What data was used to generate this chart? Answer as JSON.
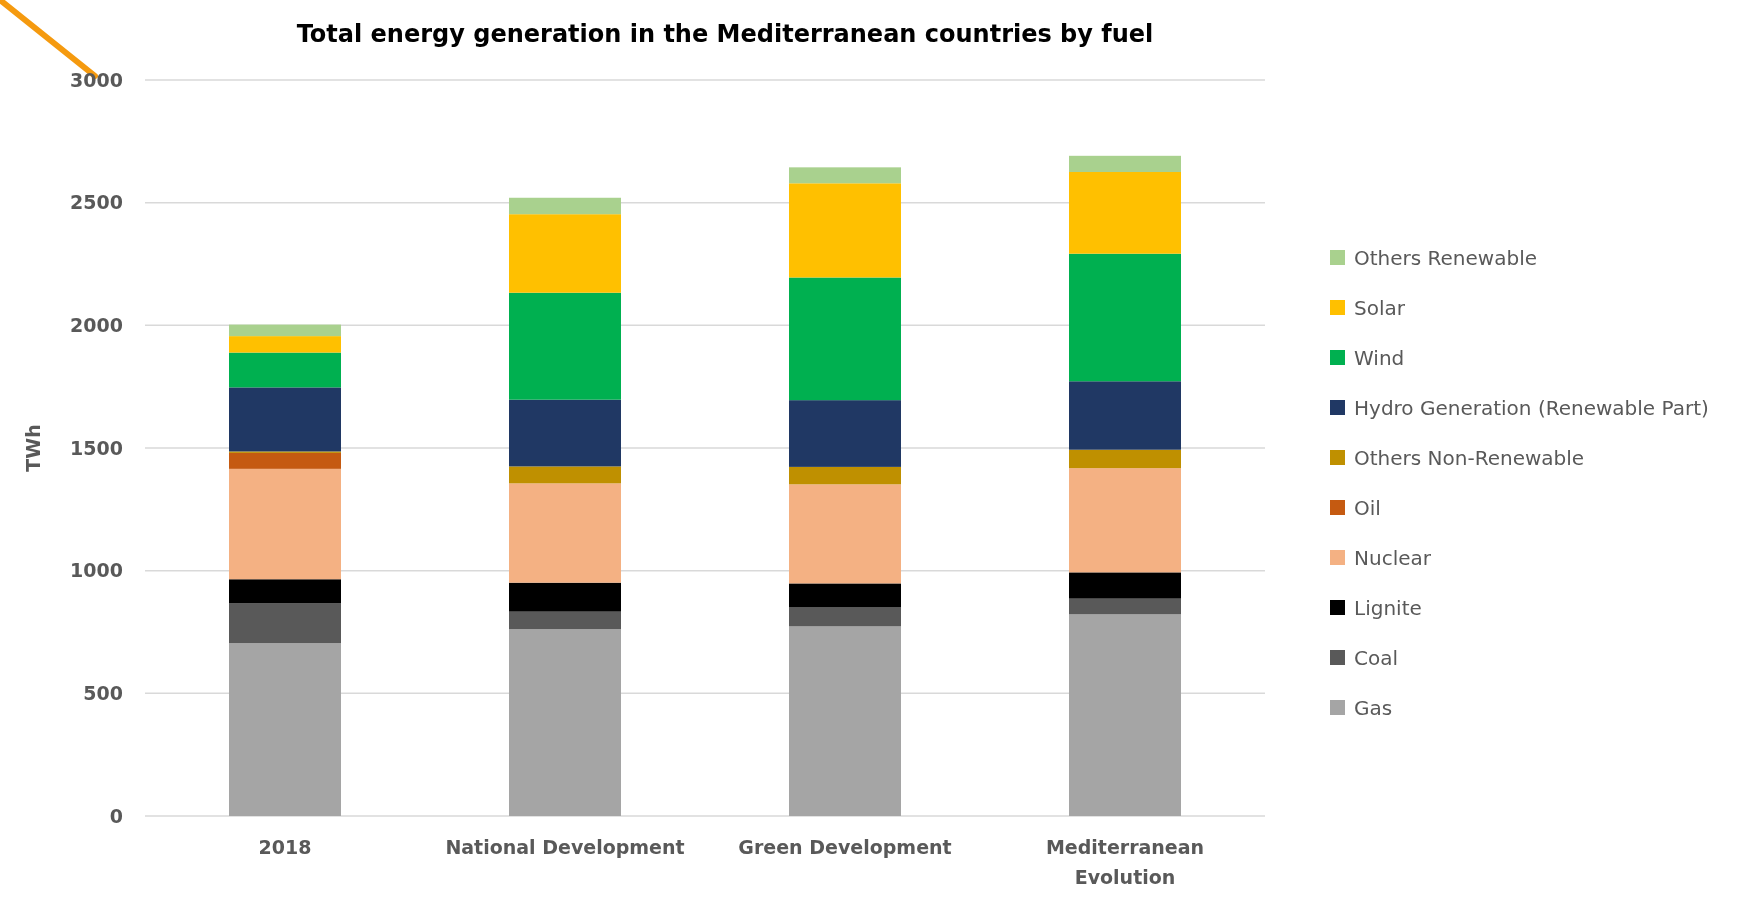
{
  "chart_data": {
    "type": "bar",
    "title": "Total energy generation in the Mediterranean countries by fuel",
    "ylabel": "TWh",
    "categories": [
      "2018",
      "National Development",
      "Green Development",
      "Mediterranean Evolution"
    ],
    "stacked": true,
    "ylim": [
      0,
      3000
    ],
    "yticks": [
      0,
      500,
      1000,
      1500,
      2000,
      2500,
      3000
    ],
    "grid": "y",
    "legend": "right",
    "series": [
      {
        "name": "Gas",
        "color": "#a5a5a5",
        "values": [
          705,
          762,
          773,
          822
        ]
      },
      {
        "name": "Coal",
        "color": "#595959",
        "values": [
          163,
          71,
          77,
          64
        ]
      },
      {
        "name": "Lignite",
        "color": "#000000",
        "values": [
          97,
          118,
          98,
          107
        ]
      },
      {
        "name": "Nuclear",
        "color": "#f4b183",
        "values": [
          450,
          405,
          404,
          425
        ]
      },
      {
        "name": "Oil",
        "color": "#c55a11",
        "values": [
          65,
          0,
          0,
          0
        ]
      },
      {
        "name": "Others Non-Renewable",
        "color": "#bf9000",
        "values": [
          6,
          69,
          71,
          75
        ]
      },
      {
        "name": "Hydro Generation (Renewable Part)",
        "color": "#203864",
        "values": [
          261,
          272,
          272,
          279
        ]
      },
      {
        "name": "Wind",
        "color": "#00b050",
        "values": [
          142,
          436,
          500,
          520
        ]
      },
      {
        "name": "Solar",
        "color": "#ffc000",
        "values": [
          67,
          320,
          384,
          333
        ]
      },
      {
        "name": "Others Renewable",
        "color": "#a9d18e",
        "values": [
          47,
          67,
          65,
          66
        ]
      }
    ]
  }
}
